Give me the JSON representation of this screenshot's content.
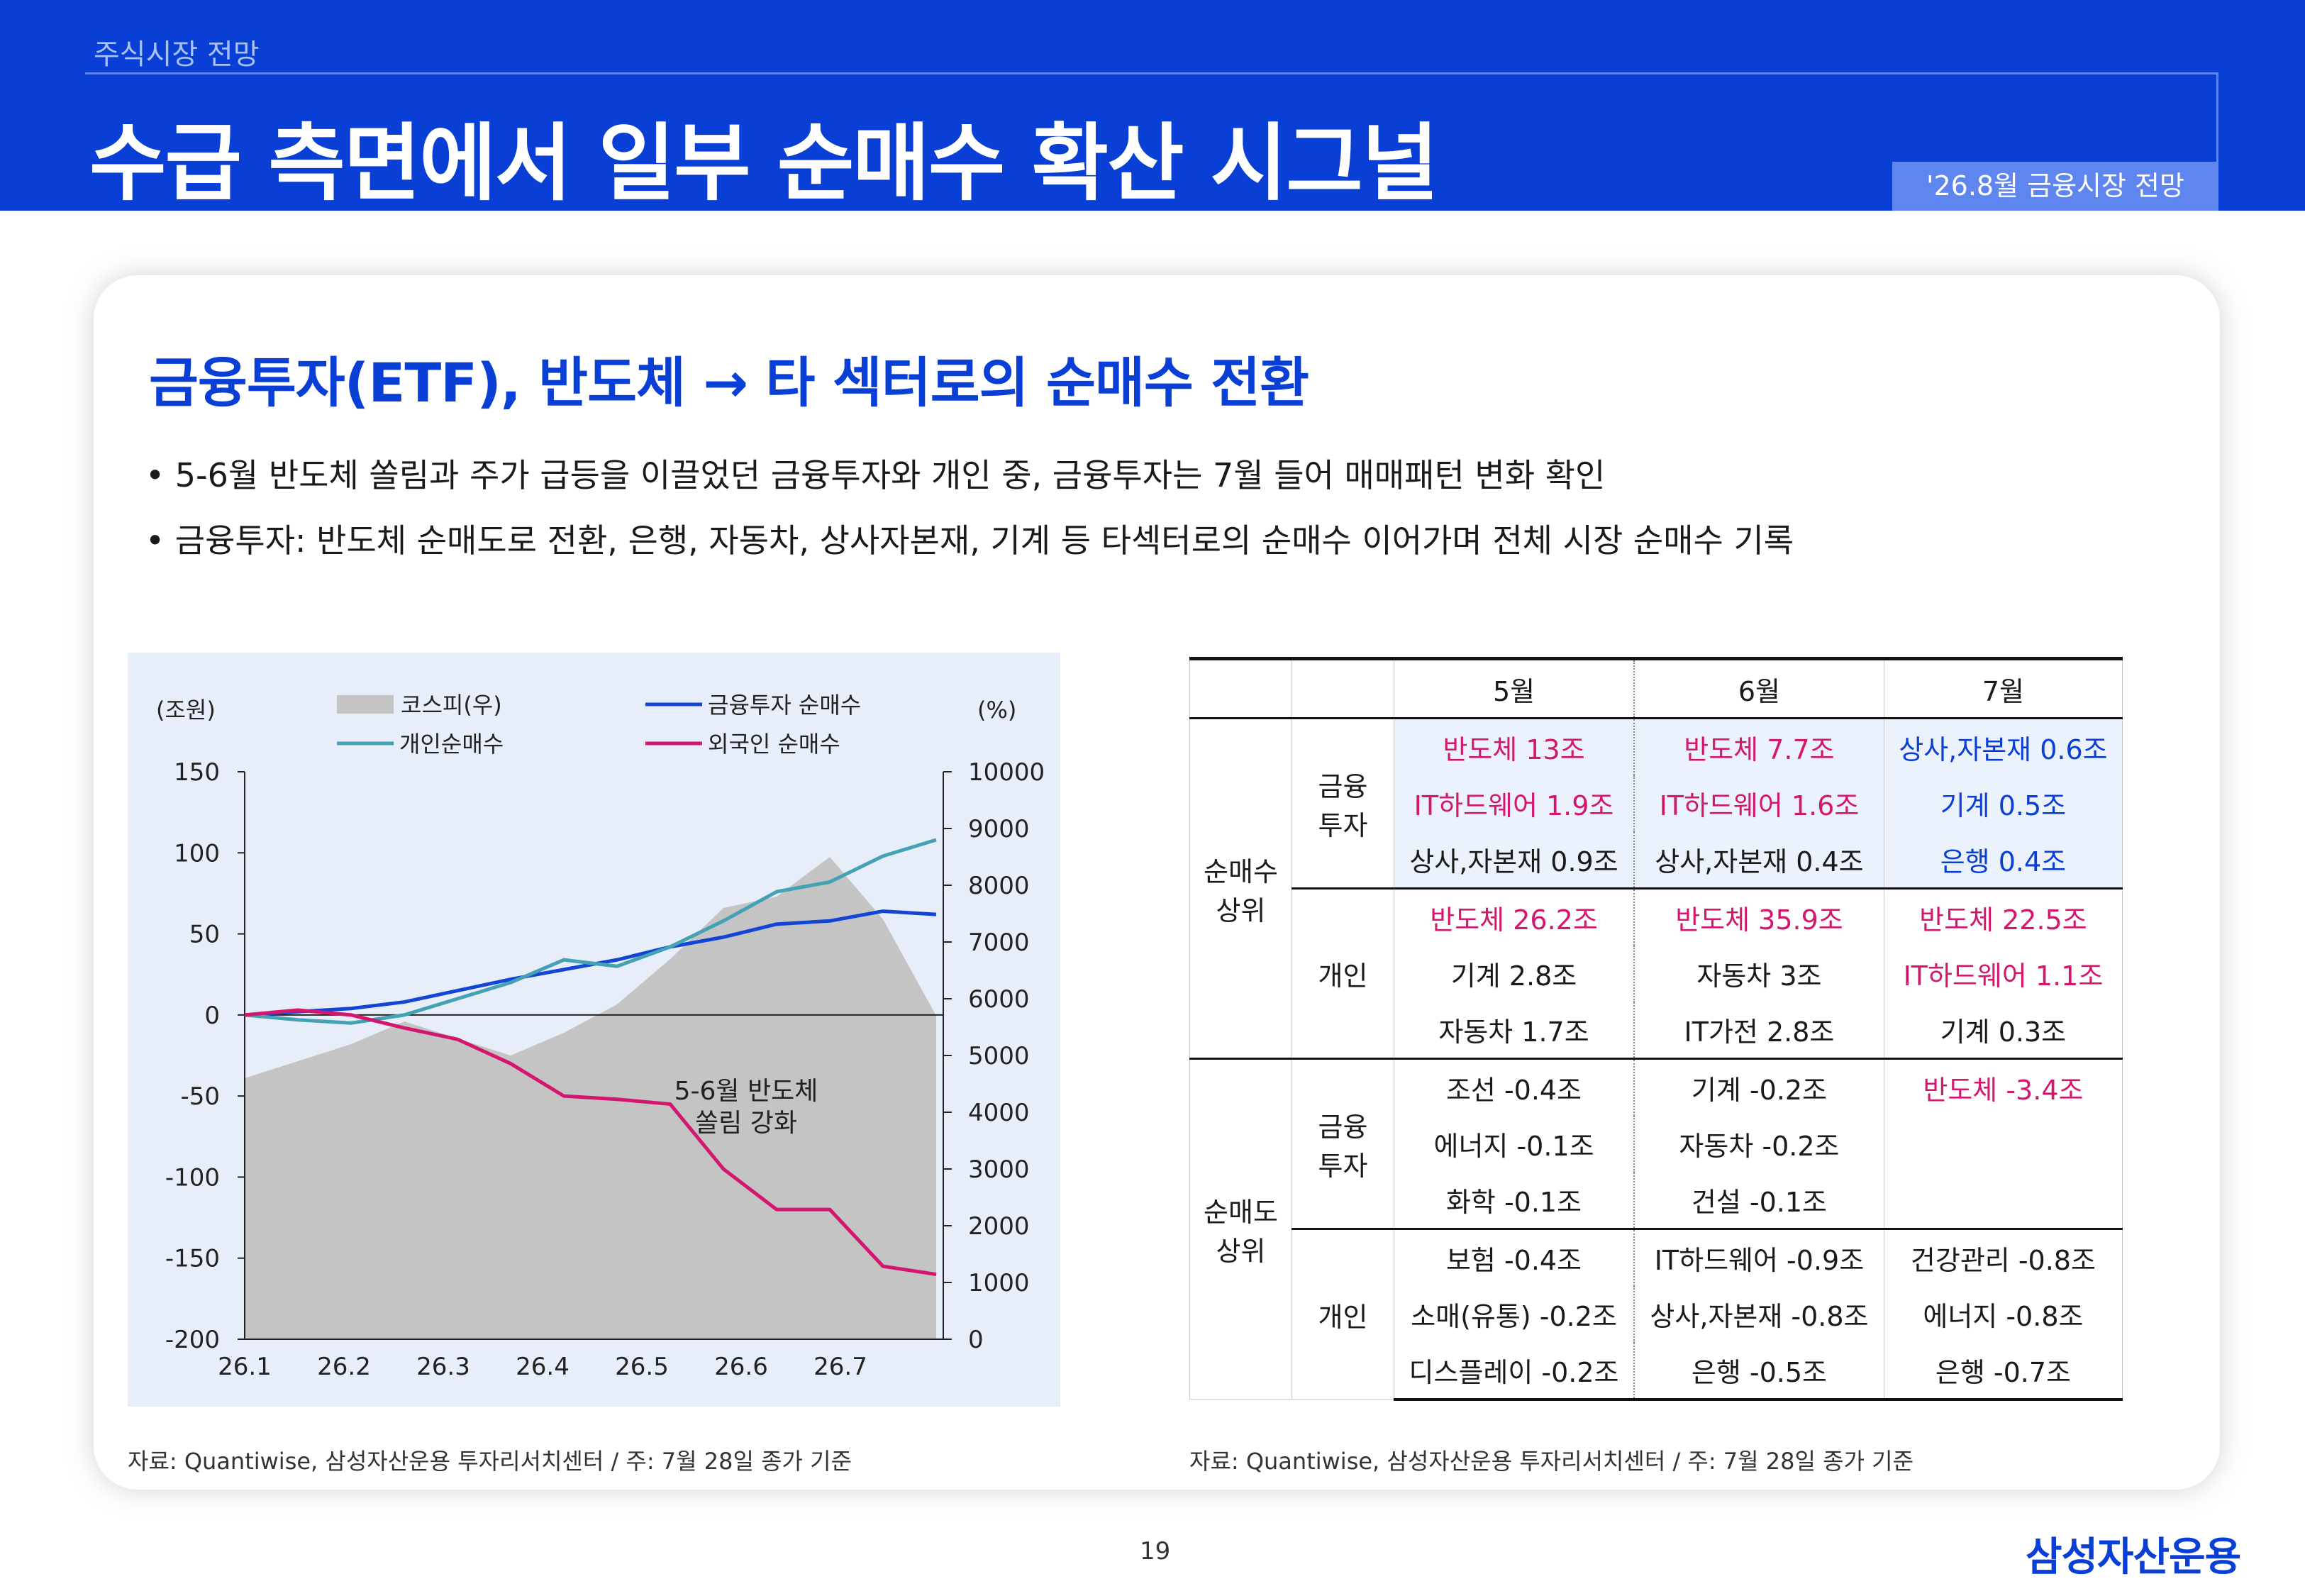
{
  "header": {
    "section": "주식시장 전망",
    "title": "수급 측면에서 일부 순매수 확산 시그널",
    "publication": "'26.8월 금융시장 전망"
  },
  "subtitle": "금융투자(ETF), 반도체 → 타 섹터로의 순매수 전환",
  "bullets": [
    "• 5-6월 반도체 쏠림과 주가 급등을 이끌었던 금융투자와 개인 중, 금융투자는 7월 들어 매매패턴 변화 확인",
    "• 금융투자: 반도체 순매도로 전환, 은행, 자동차, 상사자본재, 기계 등 타섹터로의 순매수 이어가며 전체 시장 순매수 기록"
  ],
  "chart_data": {
    "type": "line",
    "left_unit": "(조원)",
    "right_unit": "(%)",
    "x_ticks": [
      "26.1",
      "26.2",
      "26.3",
      "26.4",
      "26.5",
      "26.6",
      "26.7"
    ],
    "left_axis": {
      "ylim": [
        -200,
        150
      ],
      "ticks": [
        "150",
        "100",
        "50",
        "0",
        "-50",
        "-100",
        "-150",
        "-200"
      ]
    },
    "right_axis": {
      "ylim": [
        0,
        10000
      ],
      "ticks": [
        "10000",
        "9000",
        "8000",
        "7000",
        "6000",
        "5000",
        "4000",
        "3000",
        "2000",
        "1000",
        "0"
      ]
    },
    "annotation": [
      "5-6월 반도체",
      "쏠림 강화"
    ],
    "legend": [
      "코스피(우)",
      "금융투자 순매수",
      "개인순매수",
      "외국인 순매수"
    ],
    "colors": {
      "kospi": "#c4c4c4",
      "fin": "#1245d6",
      "indiv": "#44a2b4",
      "foreign": "#d4176e"
    },
    "dates": [
      "26.1",
      "26.1.15",
      "26.2",
      "26.2.15",
      "26.3",
      "26.3.15",
      "26.4",
      "26.4.15",
      "26.5",
      "26.5.15",
      "26.6",
      "26.6.15",
      "26.7",
      "26.7.28"
    ],
    "series": [
      {
        "name": "코스피(우)",
        "axis": "right",
        "values": [
          4600,
          4900,
          5200,
          5600,
          5300,
          5000,
          5400,
          5900,
          6700,
          7600,
          7800,
          8500,
          7400,
          5700
        ]
      },
      {
        "name": "금융투자 순매수",
        "axis": "left",
        "values": [
          0,
          2,
          4,
          8,
          15,
          22,
          28,
          34,
          42,
          48,
          56,
          58,
          64,
          62
        ]
      },
      {
        "name": "개인순매수",
        "axis": "left",
        "values": [
          0,
          -3,
          -5,
          0,
          10,
          20,
          34,
          30,
          42,
          58,
          76,
          82,
          98,
          108
        ]
      },
      {
        "name": "외국인 순매수",
        "axis": "left",
        "values": [
          0,
          3,
          0,
          -8,
          -15,
          -30,
          -50,
          -52,
          -55,
          -95,
          -120,
          -120,
          -155,
          -160
        ]
      }
    ]
  },
  "source_note": "자료: Quantiwise, 삼성자산운용 투자리서치센터 / 주: 7월 28일 종가 기준",
  "table": {
    "columns": [
      "5월",
      "6월",
      "7월"
    ],
    "group_net_buy": "순매수\n상위",
    "group_net_sell": "순매도\n상위",
    "fin_label": "금융\n투자",
    "indiv_label": "개인",
    "net_buy_fin": [
      [
        "반도체 13조",
        "반도체 7.7조",
        "상사,자본재 0.6조"
      ],
      [
        "IT하드웨어 1.9조",
        "IT하드웨어 1.6조",
        "기계 0.5조"
      ],
      [
        "상사,자본재 0.9조",
        "상사,자본재 0.4조",
        "은행 0.4조"
      ]
    ],
    "net_buy_indiv": [
      [
        "반도체 26.2조",
        "반도체 35.9조",
        "반도체 22.5조"
      ],
      [
        "기계 2.8조",
        "자동차 3조",
        "IT하드웨어 1.1조"
      ],
      [
        "자동차 1.7조",
        "IT가전 2.8조",
        "기계 0.3조"
      ]
    ],
    "net_sell_fin": [
      [
        "조선 -0.4조",
        "기계 -0.2조",
        "반도체 -3.4조"
      ],
      [
        "에너지 -0.1조",
        "자동차 -0.2조",
        ""
      ],
      [
        "화학 -0.1조",
        "건설 -0.1조",
        ""
      ]
    ],
    "net_sell_indiv": [
      [
        "보험 -0.4조",
        "IT하드웨어 -0.9조",
        "건강관리 -0.8조"
      ],
      [
        "소매(유통) -0.2조",
        "상사,자본재 -0.8조",
        "에너지 -0.8조"
      ],
      [
        "디스플레이 -0.2조",
        "은행 -0.5조",
        "은행 -0.7조"
      ]
    ]
  },
  "page_number": "19",
  "logo": "삼성자산운용"
}
